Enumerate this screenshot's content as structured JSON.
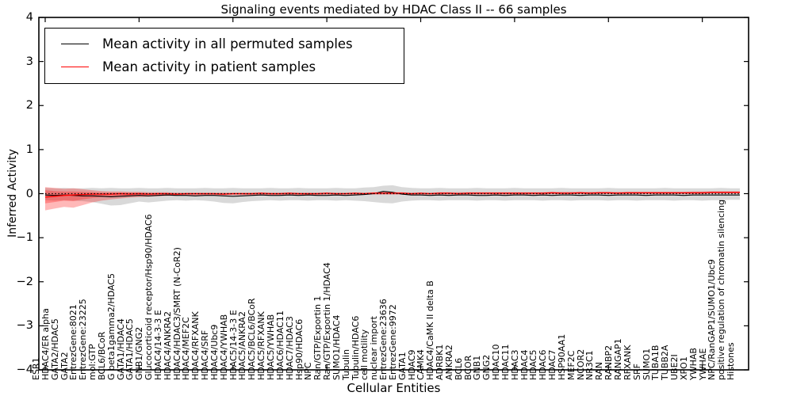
{
  "title": "Signaling events mediated by HDAC Class II -- 66 samples",
  "legend": {
    "items": [
      {
        "label": "Mean activity in all permuted samples",
        "color": "#000000"
      },
      {
        "label": "Mean activity in patient samples",
        "color": "#ff0000"
      }
    ]
  },
  "axes": {
    "ylabel": "Inferred Activity",
    "xlabel": "Cellular Entities",
    "ytick_labels": [
      "4",
      "3",
      "2",
      "1",
      "0",
      "−1",
      "−2",
      "−3",
      "−4"
    ],
    "ytick_values": [
      4,
      3,
      2,
      1,
      0,
      -1,
      -2,
      -3,
      -4
    ]
  },
  "colors": {
    "patient_line": "#ff0000",
    "permuted_line": "#000000",
    "permuted_band": "rgba(0,0,0,0.15)",
    "patient_band": "rgba(255,0,0,0.28)",
    "frame": "#000000"
  },
  "chart_data": {
    "type": "line",
    "title": "Signaling events mediated by HDAC Class II -- 66 samples",
    "xlabel": "Cellular Entities",
    "ylabel": "Inferred Activity",
    "ylim": [
      -4,
      4
    ],
    "grid": false,
    "legend_position": "upper left",
    "zero_line": {
      "y": 0,
      "style": "dotted",
      "color": "#000000"
    },
    "categories": [
      "ESR1",
      "HDAC4/ER alpha",
      "GATA2/HDAC5",
      "GATA2",
      "EntrezGene:8021",
      "EntrezGene:23225",
      "mol:GTP",
      "BCL6/BCoR",
      "G beta1gamma2/HDAC5",
      "GATA1/HDAC4",
      "GATA1/HDAC5",
      "GNB1/GNG2",
      "Glucocorticoid receptor/Hsp90/HDAC6",
      "HDAC4/14-3-3 E",
      "HDAC4/ANKRA2",
      "HDAC4/HDAC3/SMRT (N-CoR2)",
      "HDAC4/MEF2C",
      "HDAC4/RFXANK",
      "HDAC4/SRF",
      "HDAC4/Ubc9",
      "HDAC4/YWHAB",
      "HDAC5/14-3-3 E",
      "HDAC5/ANKRA2",
      "HDAC5/BCL6/BCoR",
      "HDAC5/RFXANK",
      "HDAC5/YWHAB",
      "HDAC6/HDAC11",
      "HDAC7/HDAC3",
      "Hsp90/HDAC6",
      "NPC",
      "Ran/GTP/Exportin 1",
      "Ran/GTP/Exportin 1/HDAC4",
      "SUMO1/HDAC4",
      "Tubulin",
      "Tubulin/HDAC6",
      "cell motility",
      "nuclear import",
      "EntrezGene:23636",
      "EntrezGene:9972",
      "GATA1",
      "HDAC9",
      "CAMK4",
      "HDAC4/CaMK II delta B",
      "ADRBK1",
      "ANKRA2",
      "BCL6",
      "BCOR",
      "GNB1",
      "GNG2",
      "HDAC10",
      "HDAC11",
      "HDAC3",
      "HDAC4",
      "HDAC5",
      "HDAC6",
      "HDAC7",
      "HSP90AA1",
      "MEF2C",
      "NCOR2",
      "NR3C1",
      "RAN",
      "RANBP2",
      "RANGAP1",
      "RFXANK",
      "SRF",
      "SUMO1",
      "TUBA1B",
      "TUBB2A",
      "UBE2I",
      "XPO1",
      "YWHAB",
      "YWHAE",
      "NPC/RanGAP1/SUMO1/Ubc9",
      "positive regulation of chromatin silencing",
      "Histones"
    ],
    "series": [
      {
        "name": "Mean activity in all permuted samples",
        "color": "#000000",
        "values": [
          -0.03,
          -0.04,
          -0.03,
          -0.04,
          -0.05,
          -0.05,
          -0.06,
          -0.07,
          -0.06,
          -0.05,
          -0.04,
          -0.05,
          -0.04,
          -0.03,
          -0.04,
          -0.04,
          -0.05,
          -0.04,
          -0.04,
          -0.05,
          -0.06,
          -0.05,
          -0.04,
          -0.03,
          -0.04,
          -0.04,
          -0.03,
          -0.04,
          -0.03,
          -0.04,
          -0.04,
          -0.03,
          -0.04,
          -0.03,
          -0.02,
          0.0,
          0.05,
          0.03,
          -0.01,
          -0.03,
          -0.03,
          -0.04,
          -0.03,
          -0.04,
          -0.03,
          -0.03,
          -0.04,
          -0.04,
          -0.03,
          -0.04,
          -0.03,
          -0.03,
          -0.04,
          -0.03,
          -0.04,
          -0.03,
          -0.03,
          -0.04,
          -0.03,
          -0.03,
          -0.04,
          -0.03,
          -0.03,
          -0.03,
          -0.04,
          -0.03,
          -0.03,
          -0.03,
          -0.04,
          -0.03,
          -0.03,
          -0.03,
          -0.03,
          -0.03,
          -0.03
        ]
      },
      {
        "name": "Mean activity in patient samples",
        "color": "#ff0000",
        "values": [
          -0.08,
          -0.06,
          -0.04,
          -0.03,
          -0.02,
          -0.01,
          -0.01,
          -0.01,
          0.0,
          -0.01,
          0.0,
          -0.01,
          0.0,
          0.0,
          -0.01,
          0.0,
          0.0,
          0.0,
          0.0,
          -0.01,
          0.0,
          0.0,
          0.0,
          0.01,
          0.0,
          0.0,
          0.01,
          0.0,
          0.0,
          0.0,
          0.01,
          0.0,
          0.0,
          0.01,
          0.0,
          0.01,
          0.01,
          0.01,
          0.01,
          0.0,
          0.01,
          0.0,
          0.01,
          0.01,
          0.0,
          0.01,
          0.01,
          0.01,
          0.01,
          0.01,
          0.01,
          0.01,
          0.01,
          0.01,
          0.02,
          0.01,
          0.01,
          0.02,
          0.01,
          0.02,
          0.02,
          0.01,
          0.02,
          0.02,
          0.02,
          0.02,
          0.02,
          0.02,
          0.02,
          0.02,
          0.02,
          0.03,
          0.03,
          0.03,
          0.03
        ]
      }
    ],
    "bands": [
      {
        "name": "permuted-range",
        "color": "rgba(0,0,0,0.15)",
        "upper": [
          0.13,
          0.12,
          0.13,
          0.12,
          0.12,
          0.13,
          0.12,
          0.13,
          0.12,
          0.12,
          0.13,
          0.12,
          0.12,
          0.13,
          0.12,
          0.12,
          0.12,
          0.13,
          0.12,
          0.12,
          0.13,
          0.12,
          0.12,
          0.12,
          0.13,
          0.12,
          0.12,
          0.13,
          0.12,
          0.12,
          0.12,
          0.13,
          0.12,
          0.12,
          0.14,
          0.15,
          0.18,
          0.19,
          0.15,
          0.13,
          0.12,
          0.12,
          0.13,
          0.12,
          0.12,
          0.12,
          0.13,
          0.12,
          0.12,
          0.12,
          0.13,
          0.12,
          0.12,
          0.12,
          0.12,
          0.13,
          0.12,
          0.12,
          0.12,
          0.12,
          0.13,
          0.12,
          0.12,
          0.12,
          0.12,
          0.12,
          0.13,
          0.12,
          0.12,
          0.12,
          0.12,
          0.12,
          0.13,
          0.12,
          0.12
        ],
        "lower": [
          -0.15,
          -0.16,
          -0.15,
          -0.16,
          -0.17,
          -0.19,
          -0.23,
          -0.27,
          -0.26,
          -0.22,
          -0.18,
          -0.2,
          -0.18,
          -0.16,
          -0.15,
          -0.16,
          -0.15,
          -0.16,
          -0.18,
          -0.21,
          -0.22,
          -0.19,
          -0.17,
          -0.16,
          -0.15,
          -0.16,
          -0.15,
          -0.15,
          -0.16,
          -0.15,
          -0.15,
          -0.16,
          -0.15,
          -0.16,
          -0.17,
          -0.19,
          -0.21,
          -0.22,
          -0.18,
          -0.16,
          -0.15,
          -0.15,
          -0.16,
          -0.15,
          -0.15,
          -0.15,
          -0.16,
          -0.15,
          -0.15,
          -0.16,
          -0.15,
          -0.15,
          -0.15,
          -0.16,
          -0.15,
          -0.15,
          -0.16,
          -0.15,
          -0.15,
          -0.15,
          -0.16,
          -0.15,
          -0.15,
          -0.16,
          -0.15,
          -0.15,
          -0.15,
          -0.16,
          -0.15,
          -0.15,
          -0.16,
          -0.15,
          -0.15,
          -0.14,
          -0.14
        ]
      },
      {
        "name": "patient-range-outer",
        "color": "rgba(255,0,0,0.28)",
        "upper": [
          0.15,
          0.13,
          0.11,
          0.12,
          0.1,
          0.08,
          0.06,
          0.05,
          0.05,
          0.04,
          0.04,
          0.03,
          0.03,
          0.03,
          0.02,
          0.02,
          0.02,
          0.02,
          0.02,
          0.02,
          0.02,
          0.02,
          0.02,
          0.02,
          0.02,
          0.02,
          0.02,
          0.02,
          0.02,
          0.02,
          0.02,
          0.02,
          0.02,
          0.02,
          0.02,
          0.03,
          0.03,
          0.03,
          0.03,
          0.02,
          0.02,
          0.02,
          0.03,
          0.03,
          0.03,
          0.03,
          0.03,
          0.03,
          0.03,
          0.03,
          0.03,
          0.03,
          0.03,
          0.03,
          0.04,
          0.04,
          0.04,
          0.04,
          0.04,
          0.04,
          0.04,
          0.04,
          0.04,
          0.04,
          0.04,
          0.04,
          0.04,
          0.04,
          0.04,
          0.05,
          0.05,
          0.05,
          0.05,
          0.05,
          0.05
        ],
        "lower": [
          -0.38,
          -0.34,
          -0.3,
          -0.32,
          -0.26,
          -0.2,
          -0.16,
          -0.13,
          -0.11,
          -0.09,
          -0.08,
          -0.07,
          -0.06,
          -0.05,
          -0.05,
          -0.04,
          -0.04,
          -0.03,
          -0.03,
          -0.03,
          -0.03,
          -0.03,
          -0.03,
          -0.03,
          -0.03,
          -0.03,
          -0.03,
          -0.03,
          -0.03,
          -0.03,
          -0.02,
          -0.02,
          -0.02,
          -0.02,
          -0.02,
          -0.02,
          -0.02,
          -0.02,
          -0.02,
          -0.02,
          -0.02,
          -0.02,
          -0.02,
          -0.02,
          -0.02,
          -0.02,
          -0.02,
          -0.02,
          -0.02,
          -0.02,
          -0.02,
          -0.02,
          -0.02,
          -0.02,
          -0.01,
          -0.01,
          -0.01,
          -0.01,
          -0.01,
          -0.01,
          -0.01,
          -0.01,
          -0.01,
          -0.01,
          -0.01,
          -0.01,
          -0.01,
          -0.01,
          -0.01,
          -0.01,
          -0.01,
          0.0,
          0.0,
          0.0,
          0.0
        ]
      },
      {
        "name": "patient-range-inner",
        "color": "rgba(255,0,0,0.28)",
        "upper": [
          0.08,
          0.06,
          0.05,
          0.05,
          0.04,
          0.03,
          0.02,
          0.02,
          0.02,
          0.02,
          0.02,
          0.01,
          0.01,
          0.01,
          0.01,
          0.01,
          0.01,
          0.01,
          0.01,
          0.01,
          0.01,
          0.01,
          0.01,
          0.02,
          0.01,
          0.01,
          0.02,
          0.01,
          0.01,
          0.01,
          0.02,
          0.01,
          0.01,
          0.02,
          0.01,
          0.02,
          0.02,
          0.02,
          0.02,
          0.01,
          0.02,
          0.01,
          0.02,
          0.02,
          0.01,
          0.02,
          0.02,
          0.02,
          0.02,
          0.02,
          0.02,
          0.02,
          0.02,
          0.02,
          0.03,
          0.02,
          0.02,
          0.03,
          0.02,
          0.03,
          0.03,
          0.02,
          0.03,
          0.03,
          0.03,
          0.03,
          0.03,
          0.03,
          0.03,
          0.03,
          0.03,
          0.04,
          0.04,
          0.04,
          0.04
        ],
        "lower": [
          -0.22,
          -0.19,
          -0.16,
          -0.17,
          -0.13,
          -0.1,
          -0.08,
          -0.06,
          -0.05,
          -0.04,
          -0.04,
          -0.03,
          -0.03,
          -0.02,
          -0.03,
          -0.02,
          -0.02,
          -0.02,
          -0.02,
          -0.03,
          -0.02,
          -0.02,
          -0.02,
          -0.01,
          -0.02,
          -0.02,
          -0.01,
          -0.02,
          -0.02,
          -0.02,
          -0.01,
          -0.02,
          -0.02,
          -0.01,
          -0.02,
          -0.01,
          -0.01,
          -0.01,
          -0.01,
          -0.02,
          -0.01,
          -0.02,
          -0.01,
          -0.01,
          -0.02,
          -0.01,
          -0.01,
          -0.01,
          -0.01,
          -0.01,
          -0.01,
          -0.01,
          -0.01,
          -0.01,
          0.0,
          -0.01,
          -0.01,
          0.0,
          -0.01,
          0.0,
          0.0,
          -0.01,
          0.0,
          0.0,
          0.0,
          0.0,
          0.0,
          0.0,
          0.0,
          0.0,
          0.0,
          0.01,
          0.01,
          0.01,
          0.01
        ]
      }
    ]
  }
}
